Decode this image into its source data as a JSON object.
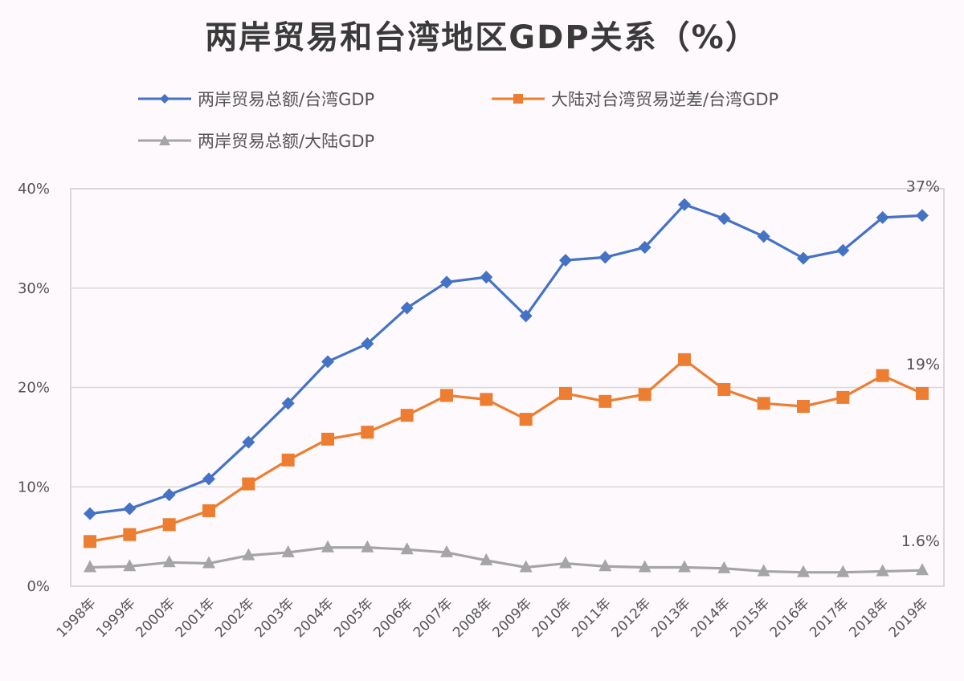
{
  "chart_data": {
    "type": "line",
    "title": "两岸贸易和台湾地区GDP关系（%）",
    "xlabel": "",
    "ylabel": "",
    "ylim": [
      0,
      40
    ],
    "yticks": [
      "0%",
      "10%",
      "20%",
      "30%",
      "40%"
    ],
    "grid": true,
    "legend_position": "top",
    "categories": [
      "1998年",
      "1999年",
      "2000年",
      "2001年",
      "2002年",
      "2003年",
      "2004年",
      "2005年",
      "2006年",
      "2007年",
      "2008年",
      "2009年",
      "2010年",
      "2011年",
      "2012年",
      "2013年",
      "2014年",
      "2015年",
      "2016年",
      "2017年",
      "2018年",
      "2019年"
    ],
    "series": [
      {
        "name": "两岸贸易总额/台湾GDP",
        "color": "#4472c4",
        "marker": "diamond",
        "values": [
          7.3,
          7.8,
          9.2,
          10.8,
          14.5,
          18.4,
          22.6,
          24.4,
          28.0,
          30.6,
          31.1,
          27.2,
          32.8,
          33.1,
          34.1,
          38.4,
          37.0,
          35.2,
          33.0,
          33.8,
          37.1,
          37.3
        ],
        "end_label": "37%"
      },
      {
        "name": "大陆对台湾贸易逆差/台湾GDP",
        "color": "#ed7d31",
        "marker": "square",
        "values": [
          4.5,
          5.2,
          6.2,
          7.6,
          10.3,
          12.7,
          14.8,
          15.5,
          17.2,
          19.2,
          18.8,
          16.8,
          19.4,
          18.6,
          19.3,
          22.8,
          19.8,
          18.4,
          18.1,
          19.0,
          21.2,
          19.4
        ],
        "end_label": "19%"
      },
      {
        "name": "两岸贸易总额/大陆GDP",
        "color": "#a5a5a5",
        "marker": "triangle",
        "values": [
          1.9,
          2.0,
          2.4,
          2.3,
          3.1,
          3.4,
          3.9,
          3.9,
          3.7,
          3.4,
          2.6,
          1.9,
          2.3,
          2.0,
          1.9,
          1.9,
          1.8,
          1.5,
          1.4,
          1.4,
          1.5,
          1.6
        ],
        "end_label": "1.6%"
      }
    ]
  }
}
